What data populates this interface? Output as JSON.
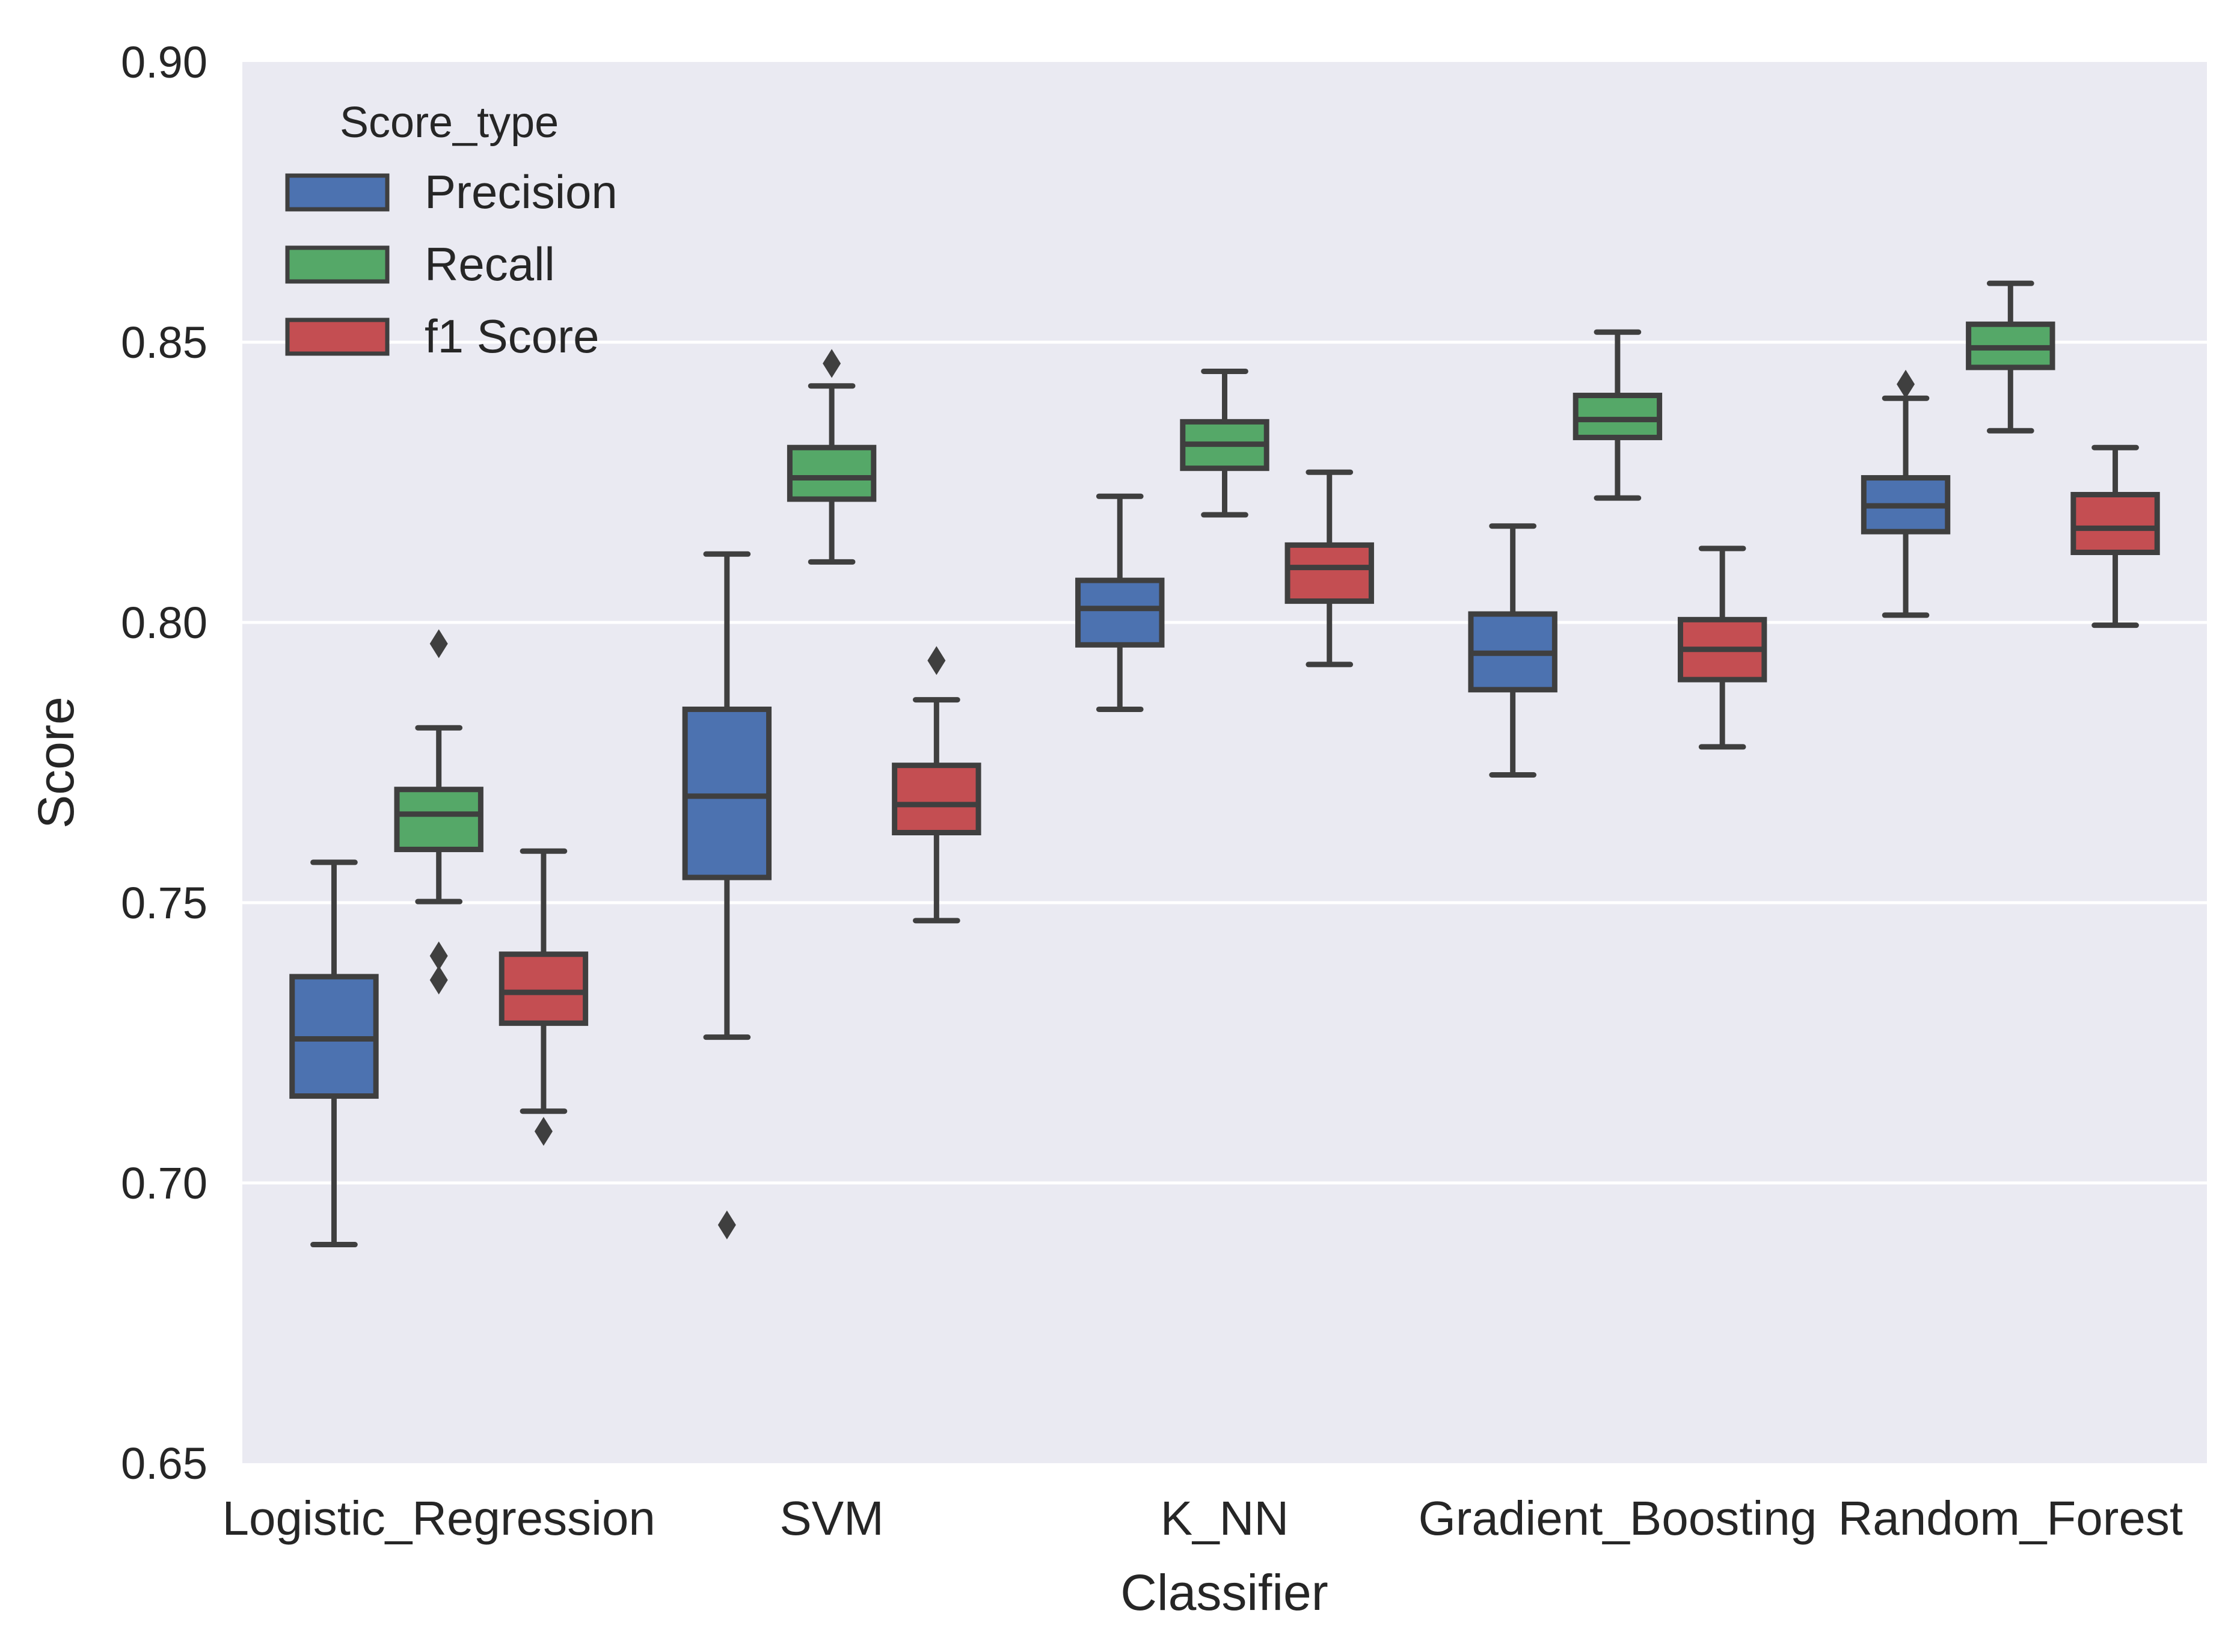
{
  "chart_data": {
    "type": "box",
    "title": "",
    "xlabel": "Classifier",
    "ylabel": "Score",
    "ylim": [
      0.65,
      0.9
    ],
    "yticks": [
      0.65,
      0.7,
      0.75,
      0.8,
      0.85,
      0.9
    ],
    "ytick_labels": [
      "0.65",
      "0.70",
      "0.75",
      "0.80",
      "0.85",
      "0.90"
    ],
    "grid": true,
    "legend": {
      "title": "Score_type",
      "position": "top-left"
    },
    "categories": [
      "Logistic_Regression",
      "SVM",
      "K_NN",
      "Gradient_Boosting",
      "Random_Forest"
    ],
    "series": [
      {
        "name": "Precision",
        "color": "#4C72B0",
        "boxes": [
          {
            "whisker_low": 0.689,
            "q1": 0.7155,
            "median": 0.7257,
            "q3": 0.7368,
            "whisker_high": 0.7572,
            "outliers": []
          },
          {
            "whisker_low": 0.726,
            "q1": 0.7545,
            "median": 0.769,
            "q3": 0.7845,
            "whisker_high": 0.8122,
            "outliers": [
              0.6925
            ]
          },
          {
            "whisker_low": 0.7845,
            "q1": 0.796,
            "median": 0.8025,
            "q3": 0.8075,
            "whisker_high": 0.8225,
            "outliers": []
          },
          {
            "whisker_low": 0.7728,
            "q1": 0.788,
            "median": 0.7945,
            "q3": 0.8015,
            "whisker_high": 0.8172,
            "outliers": []
          },
          {
            "whisker_low": 0.8013,
            "q1": 0.8162,
            "median": 0.8208,
            "q3": 0.8258,
            "whisker_high": 0.84,
            "outliers": [
              0.8425
            ]
          }
        ]
      },
      {
        "name": "Recall",
        "color": "#55A868",
        "boxes": [
          {
            "whisker_low": 0.7502,
            "q1": 0.7595,
            "median": 0.7658,
            "q3": 0.7702,
            "whisker_high": 0.7812,
            "outliers": [
              0.7362,
              0.7405,
              0.7962
            ]
          },
          {
            "whisker_low": 0.8108,
            "q1": 0.822,
            "median": 0.8258,
            "q3": 0.8312,
            "whisker_high": 0.8422,
            "outliers": [
              0.8462
            ]
          },
          {
            "whisker_low": 0.8192,
            "q1": 0.8275,
            "median": 0.8318,
            "q3": 0.8358,
            "whisker_high": 0.8448,
            "outliers": []
          },
          {
            "whisker_low": 0.8222,
            "q1": 0.833,
            "median": 0.8362,
            "q3": 0.8405,
            "whisker_high": 0.8518,
            "outliers": []
          },
          {
            "whisker_low": 0.8342,
            "q1": 0.8455,
            "median": 0.849,
            "q3": 0.8532,
            "whisker_high": 0.8605,
            "outliers": []
          }
        ]
      },
      {
        "name": "f1 Score",
        "color": "#C44E52",
        "boxes": [
          {
            "whisker_low": 0.7128,
            "q1": 0.7285,
            "median": 0.734,
            "q3": 0.7408,
            "whisker_high": 0.7592,
            "outliers": [
              0.7092
            ]
          },
          {
            "whisker_low": 0.7468,
            "q1": 0.7625,
            "median": 0.7675,
            "q3": 0.7745,
            "whisker_high": 0.7862,
            "outliers": [
              0.7932
            ]
          },
          {
            "whisker_low": 0.7925,
            "q1": 0.8038,
            "median": 0.8098,
            "q3": 0.8138,
            "whisker_high": 0.8268,
            "outliers": []
          },
          {
            "whisker_low": 0.7778,
            "q1": 0.7898,
            "median": 0.7952,
            "q3": 0.8005,
            "whisker_high": 0.8132,
            "outliers": []
          },
          {
            "whisker_low": 0.7995,
            "q1": 0.8125,
            "median": 0.8168,
            "q3": 0.8228,
            "whisker_high": 0.8312,
            "outliers": []
          }
        ]
      }
    ]
  }
}
